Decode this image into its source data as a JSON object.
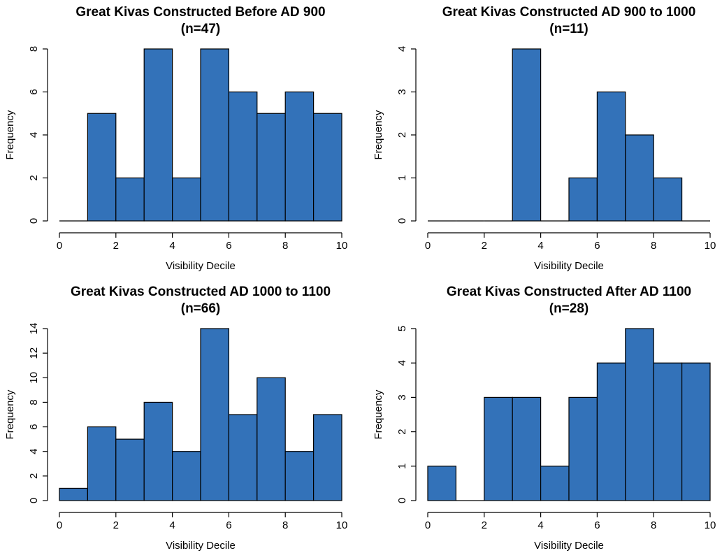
{
  "chart_data": [
    {
      "type": "histogram",
      "title": "Great Kivas Constructed Before AD 900",
      "subtitle": "(n=47)",
      "bins": [
        0,
        1,
        2,
        3,
        4,
        5,
        6,
        7,
        8,
        9,
        10
      ],
      "values": [
        0,
        5,
        2,
        8,
        2,
        8,
        6,
        5,
        6,
        5
      ],
      "color": "#3372b9",
      "xlim": [
        0,
        10
      ],
      "ylim": [
        0,
        8
      ],
      "xticks": [
        0,
        2,
        4,
        6,
        8,
        10
      ],
      "yticks": [
        0,
        2,
        4,
        6,
        8
      ],
      "xlabel": "Visibility Decile",
      "ylabel": "Frequency"
    },
    {
      "type": "histogram",
      "title": "Great Kivas Constructed AD 900 to 1000",
      "subtitle": "(n=11)",
      "bins": [
        0,
        1,
        2,
        3,
        4,
        5,
        6,
        7,
        8,
        9,
        10
      ],
      "values": [
        0,
        0,
        0,
        4,
        0,
        1,
        3,
        2,
        1,
        0
      ],
      "color": "#3372b9",
      "xlim": [
        0,
        10
      ],
      "ylim": [
        0,
        4
      ],
      "xticks": [
        0,
        2,
        4,
        6,
        8,
        10
      ],
      "yticks": [
        0,
        1,
        2,
        3,
        4
      ],
      "xlabel": "Visibility Decile",
      "ylabel": "Frequency"
    },
    {
      "type": "histogram",
      "title": "Great Kivas Constructed AD 1000 to 1100",
      "subtitle": "(n=66)",
      "bins": [
        0,
        1,
        2,
        3,
        4,
        5,
        6,
        7,
        8,
        9,
        10
      ],
      "values": [
        1,
        6,
        5,
        8,
        4,
        14,
        7,
        10,
        4,
        7
      ],
      "color": "#3372b9",
      "xlim": [
        0,
        10
      ],
      "ylim": [
        0,
        14
      ],
      "xticks": [
        0,
        2,
        4,
        6,
        8,
        10
      ],
      "yticks": [
        0,
        2,
        4,
        6,
        8,
        10,
        12,
        14
      ],
      "xlabel": "Visibility Decile",
      "ylabel": "Frequency"
    },
    {
      "type": "histogram",
      "title": "Great Kivas Constructed After AD 1100",
      "subtitle": "(n=28)",
      "bins": [
        0,
        1,
        2,
        3,
        4,
        5,
        6,
        7,
        8,
        9,
        10
      ],
      "values": [
        1,
        0,
        3,
        3,
        1,
        3,
        4,
        5,
        4,
        4
      ],
      "color": "#3372b9",
      "xlim": [
        0,
        10
      ],
      "ylim": [
        0,
        5
      ],
      "xticks": [
        0,
        2,
        4,
        6,
        8,
        10
      ],
      "yticks": [
        0,
        1,
        2,
        3,
        4,
        5
      ],
      "xlabel": "Visibility Decile",
      "ylabel": "Frequency"
    }
  ]
}
